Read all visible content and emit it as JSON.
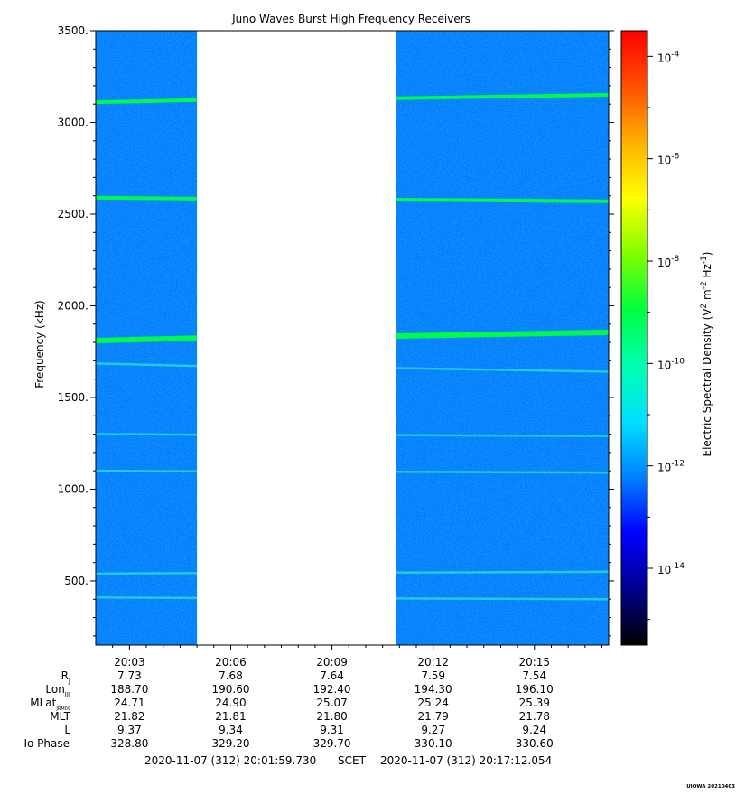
{
  "chart_data": {
    "type": "heatmap",
    "title": "Juno Waves Burst High Frequency Receivers",
    "ylabel": "Frequency (kHz)",
    "ylim": [
      150,
      3500
    ],
    "y_ticks": [
      "500.",
      "1000.",
      "1500.",
      "2000.",
      "2500.",
      "3000.",
      "3500."
    ],
    "y_tick_values": [
      500,
      1000,
      1500,
      2000,
      2500,
      3000,
      3500
    ],
    "x_tick_labels": [
      "20:03",
      "20:06",
      "20:09",
      "20:12",
      "20:15"
    ],
    "x_tick_minutes": [
      3,
      6,
      9,
      12,
      15
    ],
    "x_range_minutes": [
      2.0,
      17.2
    ],
    "data_gap_minutes": [
      5.0,
      10.9
    ],
    "spectral_lines": [
      {
        "start_khz": 3110,
        "end_khz": 3150
      },
      {
        "start_khz": 2590,
        "end_khz": 2570
      },
      {
        "start_khz": 1810,
        "end_khz": 1855
      },
      {
        "start_khz": 1685,
        "end_khz": 1640
      },
      {
        "start_khz": 1300,
        "end_khz": 1290
      },
      {
        "start_khz": 1100,
        "end_khz": 1090
      },
      {
        "start_khz": 540,
        "end_khz": 550
      },
      {
        "start_khz": 410,
        "end_khz": 400
      }
    ],
    "colorbar": {
      "label": "Electric Spectral Density (V² m⁻² Hz⁻¹)",
      "label_base": "Electric Spectral Density (V",
      "label_exp1": "2",
      "label_mid": " m",
      "label_exp2": "-2",
      "label_mid2": " Hz",
      "label_exp3": "-1",
      "label_end": ")",
      "log_range": [
        -15.5,
        -3.5
      ],
      "tick_exponents": [
        "-4",
        "-6",
        "-8",
        "-10",
        "-12",
        "-14"
      ],
      "tick_values": [
        -4,
        -6,
        -8,
        -10,
        -12,
        -14
      ],
      "colors": [
        "#000000",
        "#00008c",
        "#0000ff",
        "#0080ff",
        "#00e0ff",
        "#00ffb0",
        "#00ff40",
        "#80ff00",
        "#ffff00",
        "#ffb000",
        "#ff5000",
        "#ff0000"
      ]
    },
    "background_level": -12,
    "ephemeris": {
      "rows": [
        {
          "label": "R",
          "sub": "J",
          "values": [
            "7.73",
            "7.68",
            "7.64",
            "7.59",
            "7.54"
          ]
        },
        {
          "label": "Lon",
          "sub": "III",
          "values": [
            "188.70",
            "190.60",
            "192.40",
            "194.30",
            "196.10"
          ]
        },
        {
          "label": "MLat",
          "sub": "JRM09",
          "values": [
            "24.71",
            "24.90",
            "25.07",
            "25.24",
            "25.39"
          ]
        },
        {
          "label": "MLT",
          "sub": "",
          "values": [
            "21.82",
            "21.81",
            "21.80",
            "21.79",
            "21.78"
          ]
        },
        {
          "label": "L",
          "sub": "",
          "values": [
            "9.37",
            "9.34",
            "9.31",
            "9.27",
            "9.24"
          ]
        },
        {
          "label": "Io Phase",
          "sub": "",
          "values": [
            "328.80",
            "329.20",
            "329.70",
            "330.10",
            "330.60"
          ]
        }
      ]
    },
    "time_range": {
      "start": "2020-11-07 (312) 20:01:59.730",
      "middle": "SCET",
      "end": "2020-11-07 (312) 20:17:12.054"
    },
    "footer_tag": "UIOWA 20210403"
  }
}
